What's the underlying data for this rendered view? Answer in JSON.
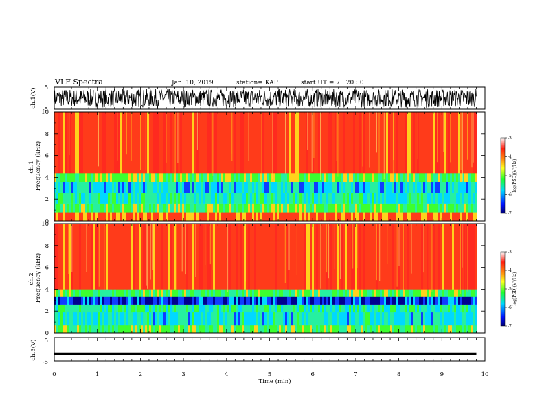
{
  "header": {
    "title": "VLF Spectra",
    "date": "Jan. 10, 2019",
    "station": "station= KAP",
    "start": "start  UT  =  7 : 20 : 0"
  },
  "chart_data": [
    {
      "type": "line",
      "panel": "ch1-waveform",
      "ylabel": "ch.1(V)",
      "ylim": [
        -5,
        5
      ],
      "yticks": [
        "5",
        "-5"
      ],
      "xlim": [
        0,
        10
      ],
      "data_extent_min": 9.8,
      "series_summary": "dense waveform filling approximately -4 to 4 V"
    },
    {
      "type": "heatmap",
      "panel": "ch1-spectrogram",
      "ylabel": "ch.1\nFrequency  (kHz)",
      "ylim": [
        0,
        10
      ],
      "yticks": [
        "0",
        "2",
        "4",
        "6",
        "8",
        "10"
      ],
      "xlim": [
        0,
        10
      ],
      "data_extent_min": 9.8,
      "bands_kHz_logPSD": [
        {
          "from": 0.0,
          "to": 0.8,
          "level": -4.2
        },
        {
          "from": 0.8,
          "to": 1.6,
          "level": -5.0
        },
        {
          "from": 1.6,
          "to": 2.6,
          "level": -5.4
        },
        {
          "from": 2.6,
          "to": 3.6,
          "level": -5.6
        },
        {
          "from": 3.6,
          "to": 4.4,
          "level": -4.9
        },
        {
          "from": 4.4,
          "to": 10.0,
          "level": -3.9
        }
      ]
    },
    {
      "type": "heatmap",
      "panel": "ch2-spectrogram",
      "ylabel": "ch.2\nFrequency  (kHz)",
      "ylim": [
        0,
        10
      ],
      "yticks": [
        "0",
        "2",
        "4",
        "6",
        "8",
        "10"
      ],
      "xlim": [
        0,
        10
      ],
      "data_extent_min": 9.8,
      "bands_kHz_logPSD": [
        {
          "from": 0.0,
          "to": 0.7,
          "level": -5.0
        },
        {
          "from": 0.7,
          "to": 1.9,
          "level": -5.5
        },
        {
          "from": 1.9,
          "to": 2.6,
          "level": -5.3
        },
        {
          "from": 2.6,
          "to": 3.3,
          "level": -6.2
        },
        {
          "from": 3.3,
          "to": 4.0,
          "level": -5.0
        },
        {
          "from": 4.0,
          "to": 10.0,
          "level": -3.9
        }
      ]
    },
    {
      "type": "line",
      "panel": "ch3-waveform",
      "ylabel": "ch.3(V)",
      "ylim": [
        -5,
        5
      ],
      "yticks": [
        "5",
        "-5"
      ],
      "xlim": [
        0,
        10
      ],
      "data_extent_min": 9.8,
      "series_summary": "flat thick trace near -2 V"
    }
  ],
  "colorbars": [
    {
      "label": "log(PSD)(V²/Hz)",
      "range": [
        -7,
        -3
      ],
      "ticks": [
        "-3",
        "-4",
        "-5",
        "-6",
        "-7"
      ]
    },
    {
      "label": "log(PSD)(V²/Hz)",
      "range": [
        -7,
        -3
      ],
      "ticks": [
        "-3",
        "-4",
        "-5",
        "-6",
        "-7"
      ]
    }
  ],
  "xaxis": {
    "label": "Time  (min)",
    "ticks": [
      "0",
      "1",
      "2",
      "3",
      "4",
      "5",
      "6",
      "7",
      "8",
      "9",
      "10"
    ]
  },
  "colors": {
    "red": "#ff2a1f",
    "yellow": "#ffe21c",
    "green": "#2eff3a",
    "cyan": "#00e8ff",
    "blue": "#0f3cff",
    "navy": "#000090"
  }
}
